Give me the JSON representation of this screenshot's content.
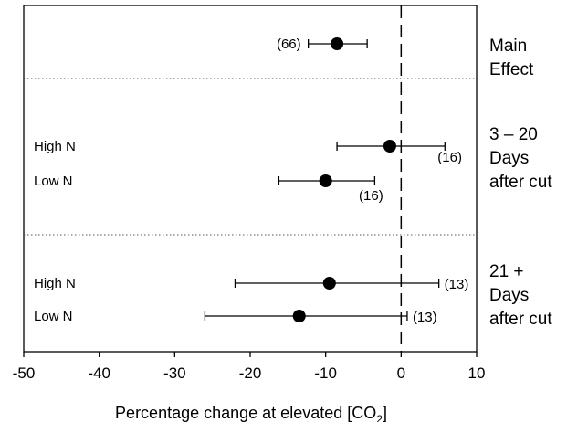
{
  "chart_data": {
    "type": "scatter",
    "title": "",
    "xlabel": "Percentage change at elevated [CO",
    "xlabel_subscript": "2",
    "xlabel_suffix": "]",
    "ylabel": "",
    "xlim": [
      -50,
      10
    ],
    "xticks": [
      "-50",
      "-40",
      "-30",
      "-20",
      "-10",
      "0",
      "10"
    ],
    "grid": false,
    "reference_line": {
      "x": 0,
      "style": "dashed"
    },
    "groups": [
      {
        "label": "Main Effect",
        "label_lines": [
          "Main",
          "Effect"
        ]
      },
      {
        "label": "3 – 20 Days after cut",
        "label_lines": [
          "3 – 20",
          "Days",
          "after cut"
        ]
      },
      {
        "label": "21 + Days after cut",
        "label_lines": [
          "21 +",
          "Days",
          "after cut"
        ]
      }
    ],
    "points": [
      {
        "group": 0,
        "row_label": "",
        "value": -8.5,
        "ci_low": -12.3,
        "ci_high": -4.5,
        "n": "(66)"
      },
      {
        "group": 1,
        "row_label": "High N",
        "value": -1.5,
        "ci_low": -8.5,
        "ci_high": 5.8,
        "n": "(16)"
      },
      {
        "group": 1,
        "row_label": "Low N",
        "value": -10.0,
        "ci_low": -16.2,
        "ci_high": -3.5,
        "n": "(16)"
      },
      {
        "group": 2,
        "row_label": "High N",
        "value": -9.5,
        "ci_low": -22.0,
        "ci_high": 5.0,
        "n": "(13)"
      },
      {
        "group": 2,
        "row_label": "Low N",
        "value": -13.5,
        "ci_low": -26.0,
        "ci_high": 0.8,
        "n": "(13)"
      }
    ]
  }
}
